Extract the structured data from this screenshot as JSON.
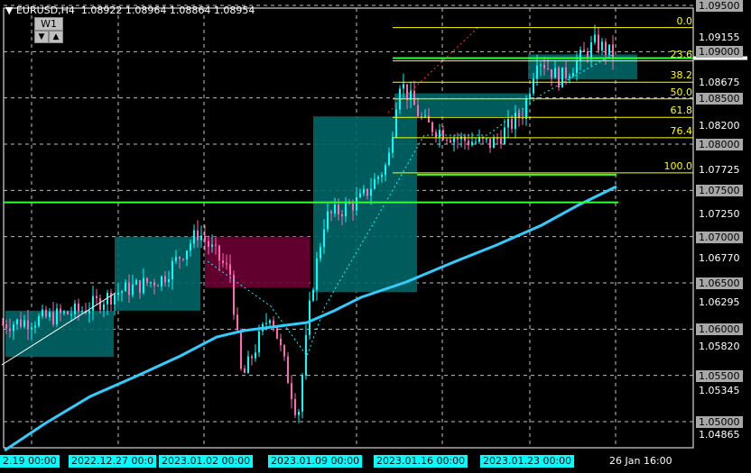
{
  "header": {
    "symbol": "EURUSD,H4",
    "ohlc": "1.08922 1.08964 1.08864 1.08954",
    "timeframe_button": "W1",
    "down_icon": "▼",
    "up_icon": "▲"
  },
  "price_axis": {
    "labels": [
      {
        "text": "1.09500",
        "p": 1.095,
        "boxed": true
      },
      {
        "text": "1.09155",
        "p": 1.09155,
        "boxed": false
      },
      {
        "text": "1.09000",
        "p": 1.09,
        "boxed": true
      },
      {
        "text": "1.08675",
        "p": 1.08675,
        "boxed": false
      },
      {
        "text": "1.08500",
        "p": 1.085,
        "boxed": true
      },
      {
        "text": "1.08200",
        "p": 1.082,
        "boxed": false
      },
      {
        "text": "1.08000",
        "p": 1.08,
        "boxed": true
      },
      {
        "text": "1.07725",
        "p": 1.07725,
        "boxed": false
      },
      {
        "text": "1.07500",
        "p": 1.075,
        "boxed": true
      },
      {
        "text": "1.07250",
        "p": 1.0725,
        "boxed": false
      },
      {
        "text": "1.07000",
        "p": 1.07,
        "boxed": true
      },
      {
        "text": "1.06770",
        "p": 1.0677,
        "boxed": false
      },
      {
        "text": "1.06500",
        "p": 1.065,
        "boxed": true
      },
      {
        "text": "1.06295",
        "p": 1.06295,
        "boxed": false
      },
      {
        "text": "1.06000",
        "p": 1.06,
        "boxed": true
      },
      {
        "text": "1.05820",
        "p": 1.0582,
        "boxed": false
      },
      {
        "text": "1.05500",
        "p": 1.055,
        "boxed": true
      },
      {
        "text": "1.05345",
        "p": 1.05345,
        "boxed": false
      },
      {
        "text": "1.05000",
        "p": 1.05,
        "boxed": true
      },
      {
        "text": "1.04865",
        "p": 1.04865,
        "boxed": false
      }
    ]
  },
  "time_axis": {
    "labels": [
      {
        "text": "2.19 00:00",
        "boxed": true
      },
      {
        "text": "2022.12.27 00:0",
        "boxed": true
      },
      {
        "text": "2023.01.02 00:00",
        "boxed": true
      },
      {
        "text": "2023.01.09 00:00",
        "boxed": true
      },
      {
        "text": "2023.01.16 00:00",
        "boxed": true
      },
      {
        "text": "2023.01.23 00:00",
        "boxed": true
      },
      {
        "text": "26 Jan 16:00",
        "boxed": false
      }
    ]
  },
  "fibonacci": {
    "levels": [
      {
        "text": "0.0",
        "p": 1.0926
      },
      {
        "text": "23.6",
        "p": 1.089
      },
      {
        "text": "38.2",
        "p": 1.0867
      },
      {
        "text": "50.0",
        "p": 1.0849
      },
      {
        "text": "61.8",
        "p": 1.0829
      },
      {
        "text": "76.4",
        "p": 1.0807
      },
      {
        "text": "100.0",
        "p": 1.0769
      }
    ]
  },
  "colors": {
    "bull": "#00ffff",
    "bear": "#ff69b4",
    "ma": "#33ccff",
    "fib": "#ffff00",
    "level": "#33ff33",
    "box_teal": "#006666",
    "box_pink": "#6b0033",
    "grid": "#c0c0c0"
  },
  "price_path": [
    [
      0,
      1.0605
    ],
    [
      40,
      1.061
    ],
    [
      90,
      1.062
    ],
    [
      130,
      1.064
    ],
    [
      180,
      1.0655
    ],
    [
      220,
      1.0705
    ],
    [
      255,
      1.066
    ],
    [
      268,
      1.0545
    ],
    [
      300,
      1.062
    ],
    [
      330,
      1.0505
    ],
    [
      345,
      1.064
    ],
    [
      360,
      1.072
    ],
    [
      400,
      1.074
    ],
    [
      430,
      1.078
    ],
    [
      442,
      1.087
    ],
    [
      470,
      1.0822
    ],
    [
      510,
      1.0805
    ],
    [
      545,
      1.08
    ],
    [
      580,
      1.0835
    ],
    [
      595,
      1.0895
    ],
    [
      620,
      1.087
    ],
    [
      660,
      1.091
    ],
    [
      680,
      1.0895
    ]
  ]
}
